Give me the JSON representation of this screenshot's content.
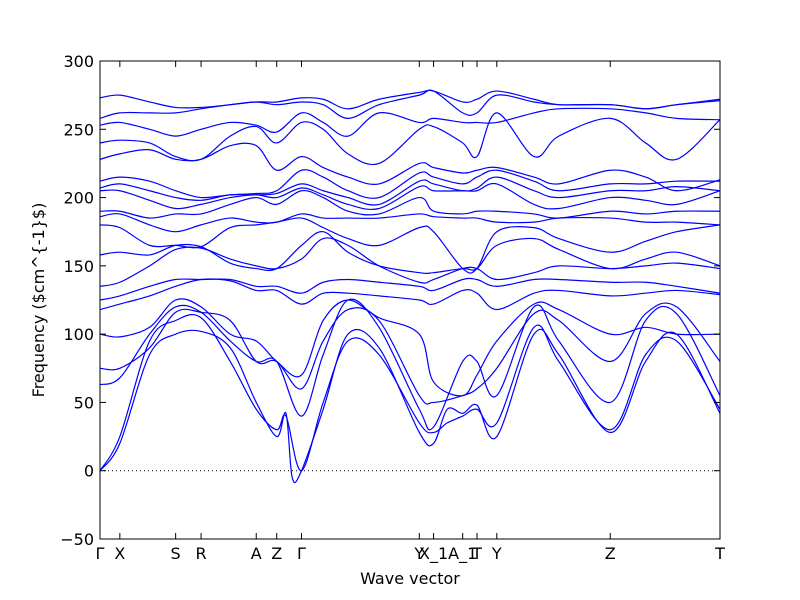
{
  "chart_data": {
    "type": "line",
    "title": "",
    "xlabel": "Wave vector",
    "ylabel": "Frequency ($cm^{-1}$)",
    "ylim": [
      -50,
      300
    ],
    "xlim": [
      0,
      10
    ],
    "yticks": [
      -50,
      0,
      50,
      100,
      150,
      200,
      250,
      300
    ],
    "grid": false,
    "zero_reference_line": 0,
    "high_symmetry_points": [
      {
        "label": "Γ",
        "x": 0.0
      },
      {
        "label": "X",
        "x": 0.32
      },
      {
        "label": "S",
        "x": 1.22
      },
      {
        "label": "R",
        "x": 1.63
      },
      {
        "label": "A",
        "x": 2.52
      },
      {
        "label": "Z",
        "x": 2.85
      },
      {
        "label": "Γ",
        "x": 3.25
      },
      {
        "label": "Y",
        "x": 5.15
      },
      {
        "label": "X_1",
        "x": 5.38
      },
      {
        "label": "A_1",
        "x": 5.85
      },
      {
        "label": "T",
        "x": 6.08
      },
      {
        "label": "Y",
        "x": 6.4
      },
      {
        "label": "Z",
        "x": 8.23
      },
      {
        "label": "T",
        "x": 10.0
      }
    ],
    "series": [
      {
        "color": "#0000ff",
        "x": [
          0,
          0.32,
          0.8,
          1.22,
          1.63,
          2.1,
          2.52,
          2.85,
          3.0,
          3.25,
          3.6,
          4.0,
          4.5,
          5.15,
          5.38,
          5.6,
          5.85,
          6.08,
          6.4,
          7.0,
          7.4,
          8.23,
          8.8,
          9.3,
          10.0
        ],
        "y": [
          0,
          25,
          95,
          110,
          112,
          80,
          45,
          30,
          40,
          0,
          50,
          95,
          85,
          35,
          28,
          35,
          40,
          45,
          35,
          105,
          80,
          30,
          85,
          95,
          45
        ]
      },
      {
        "color": "#0000ff",
        "x": [
          0,
          0.32,
          0.8,
          1.22,
          1.63,
          2.1,
          2.52,
          2.85,
          3.0,
          3.1,
          3.25,
          3.6,
          4.0,
          4.5,
          5.15,
          5.38,
          5.6,
          5.85,
          6.08,
          6.4,
          7.0,
          7.4,
          8.23,
          8.8,
          9.3,
          10.0
        ],
        "y": [
          0,
          20,
          85,
          100,
          102,
          90,
          50,
          25,
          42,
          -5,
          0,
          45,
          100,
          90,
          28,
          20,
          45,
          42,
          48,
          25,
          100,
          85,
          28,
          80,
          100,
          42
        ]
      },
      {
        "color": "#0000ff",
        "x": [
          0,
          0.32,
          0.8,
          1.22,
          1.63,
          2.1,
          2.52,
          2.85,
          3.25,
          3.6,
          4.0,
          4.5,
          5.15,
          5.38,
          5.85,
          6.08,
          6.4,
          7.0,
          7.4,
          8.23,
          8.8,
          9.3,
          10.0
        ],
        "y": [
          63,
          68,
          100,
          120,
          116,
          95,
          80,
          80,
          40,
          85,
          125,
          105,
          45,
          32,
          80,
          80,
          55,
          120,
          95,
          50,
          110,
          115,
          55
        ]
      },
      {
        "color": "#0000ff",
        "x": [
          0,
          0.32,
          0.8,
          1.22,
          1.63,
          2.1,
          2.52,
          2.85,
          3.25,
          3.6,
          4.0,
          4.5,
          5.15,
          5.38,
          5.85,
          6.08,
          6.4,
          7.0,
          7.4,
          8.23,
          8.8,
          9.3,
          10.0
        ],
        "y": [
          75,
          75,
          90,
          116,
          116,
          110,
          80,
          80,
          60,
          95,
          118,
          110,
          55,
          50,
          55,
          60,
          75,
          115,
          110,
          80,
          115,
          120,
          80
        ]
      },
      {
        "color": "#0000ff",
        "x": [
          0,
          0.32,
          0.8,
          1.22,
          1.63,
          2.1,
          2.52,
          2.85,
          3.25,
          3.6,
          4.0,
          4.5,
          5.15,
          5.38,
          5.85,
          6.08,
          6.4,
          7.0,
          7.4,
          8.23,
          8.8,
          9.3,
          10.0
        ],
        "y": [
          100,
          98,
          105,
          125,
          120,
          100,
          95,
          80,
          70,
          110,
          125,
          112,
          100,
          65,
          55,
          70,
          95,
          122,
          118,
          100,
          105,
          100,
          100
        ]
      },
      {
        "color": "#0000ff",
        "x": [
          0,
          0.32,
          0.8,
          1.22,
          1.63,
          2.1,
          2.52,
          2.85,
          3.25,
          3.6,
          4.0,
          4.5,
          5.15,
          5.38,
          5.85,
          6.08,
          6.4,
          7.0,
          7.4,
          8.23,
          8.8,
          9.3,
          10.0
        ],
        "y": [
          118,
          122,
          128,
          135,
          140,
          139,
          132,
          132,
          122,
          130,
          130,
          128,
          125,
          122,
          132,
          130,
          118,
          130,
          132,
          128,
          130,
          132,
          129
        ]
      },
      {
        "color": "#0000ff",
        "x": [
          0,
          0.32,
          0.8,
          1.22,
          1.63,
          2.1,
          2.52,
          2.85,
          3.25,
          3.6,
          4.0,
          4.5,
          5.15,
          5.38,
          5.85,
          6.08,
          6.4,
          7.0,
          7.4,
          8.23,
          8.8,
          9.3,
          10.0
        ],
        "y": [
          125,
          128,
          135,
          140,
          140,
          140,
          135,
          135,
          130,
          138,
          140,
          138,
          135,
          132,
          140,
          140,
          135,
          140,
          140,
          138,
          138,
          135,
          130
        ]
      },
      {
        "color": "#0000ff",
        "x": [
          0,
          0.32,
          0.8,
          1.22,
          1.63,
          2.1,
          2.52,
          2.85,
          3.25,
          3.6,
          4.0,
          4.5,
          5.15,
          5.38,
          5.85,
          6.08,
          6.4,
          7.0,
          7.4,
          8.23,
          8.8,
          9.3,
          10.0
        ],
        "y": [
          135,
          138,
          150,
          162,
          163,
          155,
          150,
          148,
          155,
          170,
          165,
          150,
          138,
          140,
          148,
          148,
          140,
          145,
          150,
          148,
          150,
          152,
          148
        ]
      },
      {
        "color": "#0000ff",
        "x": [
          0,
          0.32,
          0.8,
          1.22,
          1.63,
          2.1,
          2.52,
          2.85,
          3.25,
          3.6,
          4.0,
          4.5,
          5.15,
          5.38,
          5.85,
          6.08,
          6.4,
          7.0,
          7.4,
          8.23,
          8.8,
          9.3,
          10.0
        ],
        "y": [
          158,
          160,
          158,
          165,
          164,
          152,
          148,
          148,
          165,
          175,
          160,
          150,
          145,
          145,
          148,
          148,
          165,
          170,
          162,
          148,
          155,
          160,
          150
        ]
      },
      {
        "color": "#0000ff",
        "x": [
          0,
          0.32,
          0.8,
          1.22,
          1.63,
          2.1,
          2.52,
          2.85,
          3.25,
          3.6,
          4.0,
          4.5,
          5.15,
          5.38,
          5.85,
          6.08,
          6.4,
          7.0,
          7.4,
          8.23,
          8.8,
          9.3,
          10.0
        ],
        "y": [
          180,
          178,
          165,
          165,
          164,
          178,
          180,
          182,
          185,
          178,
          170,
          165,
          178,
          175,
          148,
          148,
          175,
          178,
          170,
          160,
          168,
          175,
          180
        ]
      },
      {
        "color": "#0000ff",
        "x": [
          0,
          0.32,
          0.8,
          1.22,
          1.63,
          2.1,
          2.52,
          2.85,
          3.25,
          3.6,
          4.0,
          4.5,
          5.15,
          5.38,
          5.85,
          6.08,
          6.4,
          7.0,
          7.4,
          8.23,
          8.8,
          9.3,
          10.0
        ],
        "y": [
          186,
          188,
          180,
          175,
          180,
          185,
          182,
          182,
          188,
          185,
          185,
          185,
          188,
          186,
          185,
          185,
          182,
          182,
          185,
          185,
          182,
          182,
          180
        ]
      },
      {
        "color": "#0000ff",
        "x": [
          0,
          0.32,
          0.8,
          1.22,
          1.63,
          2.1,
          2.52,
          2.85,
          3.25,
          3.6,
          4.0,
          4.5,
          5.15,
          5.38,
          5.85,
          6.08,
          6.4,
          7.0,
          7.4,
          8.23,
          8.8,
          9.3,
          10.0
        ],
        "y": [
          190,
          190,
          185,
          188,
          188,
          195,
          200,
          195,
          205,
          200,
          190,
          188,
          200,
          190,
          188,
          190,
          190,
          188,
          185,
          190,
          188,
          190,
          190
        ]
      },
      {
        "color": "#0000ff",
        "x": [
          0,
          0.32,
          0.8,
          1.22,
          1.63,
          2.1,
          2.52,
          2.85,
          3.25,
          3.6,
          4.0,
          4.5,
          5.15,
          5.38,
          5.85,
          6.08,
          6.4,
          7.0,
          7.4,
          8.23,
          8.8,
          9.3,
          10.0
        ],
        "y": [
          205,
          205,
          198,
          192,
          195,
          200,
          202,
          200,
          207,
          202,
          195,
          192,
          208,
          205,
          205,
          205,
          210,
          195,
          192,
          200,
          198,
          195,
          205
        ]
      },
      {
        "color": "#0000ff",
        "x": [
          0,
          0.32,
          0.8,
          1.22,
          1.63,
          2.1,
          2.52,
          2.85,
          3.25,
          3.6,
          4.0,
          4.5,
          5.15,
          5.38,
          5.85,
          6.08,
          6.4,
          7.0,
          7.4,
          8.23,
          8.8,
          9.3,
          10.0
        ],
        "y": [
          207,
          210,
          205,
          200,
          198,
          202,
          202,
          203,
          210,
          205,
          200,
          195,
          212,
          210,
          205,
          207,
          215,
          205,
          200,
          205,
          205,
          208,
          205
        ]
      },
      {
        "color": "#0000ff",
        "x": [
          0,
          0.32,
          0.8,
          1.22,
          1.63,
          2.1,
          2.52,
          2.85,
          3.25,
          3.6,
          4.0,
          4.5,
          5.15,
          5.38,
          5.85,
          6.08,
          6.4,
          7.0,
          7.4,
          8.23,
          8.8,
          9.3,
          10.0
        ],
        "y": [
          212,
          215,
          212,
          205,
          200,
          202,
          203,
          205,
          220,
          215,
          205,
          200,
          218,
          215,
          210,
          215,
          220,
          212,
          205,
          210,
          210,
          212,
          212
        ]
      },
      {
        "color": "#0000ff",
        "x": [
          0,
          0.32,
          0.8,
          1.22,
          1.63,
          2.1,
          2.52,
          2.85,
          3.25,
          3.6,
          4.0,
          4.5,
          5.15,
          5.38,
          5.85,
          6.08,
          6.4,
          7.0,
          7.4,
          8.23,
          8.8,
          9.3,
          10.0
        ],
        "y": [
          228,
          232,
          235,
          228,
          228,
          238,
          238,
          220,
          230,
          222,
          215,
          210,
          225,
          222,
          218,
          220,
          222,
          215,
          210,
          220,
          215,
          205,
          213
        ]
      },
      {
        "color": "#0000ff",
        "x": [
          0,
          0.32,
          0.8,
          1.22,
          1.63,
          2.1,
          2.52,
          2.85,
          3.25,
          3.6,
          4.0,
          4.5,
          5.15,
          5.38,
          5.85,
          6.08,
          6.4,
          7.0,
          7.4,
          8.23,
          8.8,
          9.3,
          10.0
        ],
        "y": [
          240,
          242,
          240,
          230,
          228,
          245,
          252,
          240,
          255,
          250,
          232,
          225,
          250,
          252,
          240,
          230,
          262,
          230,
          245,
          258,
          240,
          228,
          257
        ]
      },
      {
        "color": "#0000ff",
        "x": [
          0,
          0.32,
          0.8,
          1.22,
          1.63,
          2.1,
          2.52,
          2.85,
          3.25,
          3.6,
          4.0,
          4.5,
          5.15,
          5.38,
          5.85,
          6.08,
          6.4,
          7.0,
          7.4,
          8.23,
          8.8,
          9.3,
          10.0
        ],
        "y": [
          253,
          255,
          250,
          245,
          250,
          255,
          253,
          248,
          262,
          255,
          245,
          262,
          255,
          258,
          255,
          255,
          255,
          262,
          265,
          265,
          262,
          258,
          257
        ]
      },
      {
        "color": "#0000ff",
        "x": [
          0,
          0.32,
          0.8,
          1.22,
          1.63,
          2.1,
          2.52,
          2.85,
          3.25,
          3.6,
          4.0,
          4.5,
          5.15,
          5.38,
          5.85,
          6.08,
          6.4,
          7.0,
          7.4,
          8.23,
          8.8,
          9.3,
          10.0
        ],
        "y": [
          258,
          262,
          262,
          262,
          265,
          268,
          270,
          268,
          270,
          268,
          258,
          268,
          275,
          278,
          262,
          262,
          275,
          270,
          268,
          268,
          265,
          268,
          271
        ]
      },
      {
        "color": "#0000ff",
        "x": [
          0,
          0.32,
          0.8,
          1.22,
          1.63,
          2.1,
          2.52,
          2.85,
          3.25,
          3.6,
          4.0,
          4.5,
          5.15,
          5.38,
          5.85,
          6.08,
          6.4,
          7.0,
          7.4,
          8.23,
          8.8,
          9.3,
          10.0
        ],
        "y": [
          273,
          275,
          270,
          266,
          266,
          268,
          270,
          270,
          273,
          272,
          265,
          272,
          277,
          278,
          270,
          272,
          278,
          272,
          268,
          268,
          265,
          268,
          272
        ]
      }
    ]
  }
}
